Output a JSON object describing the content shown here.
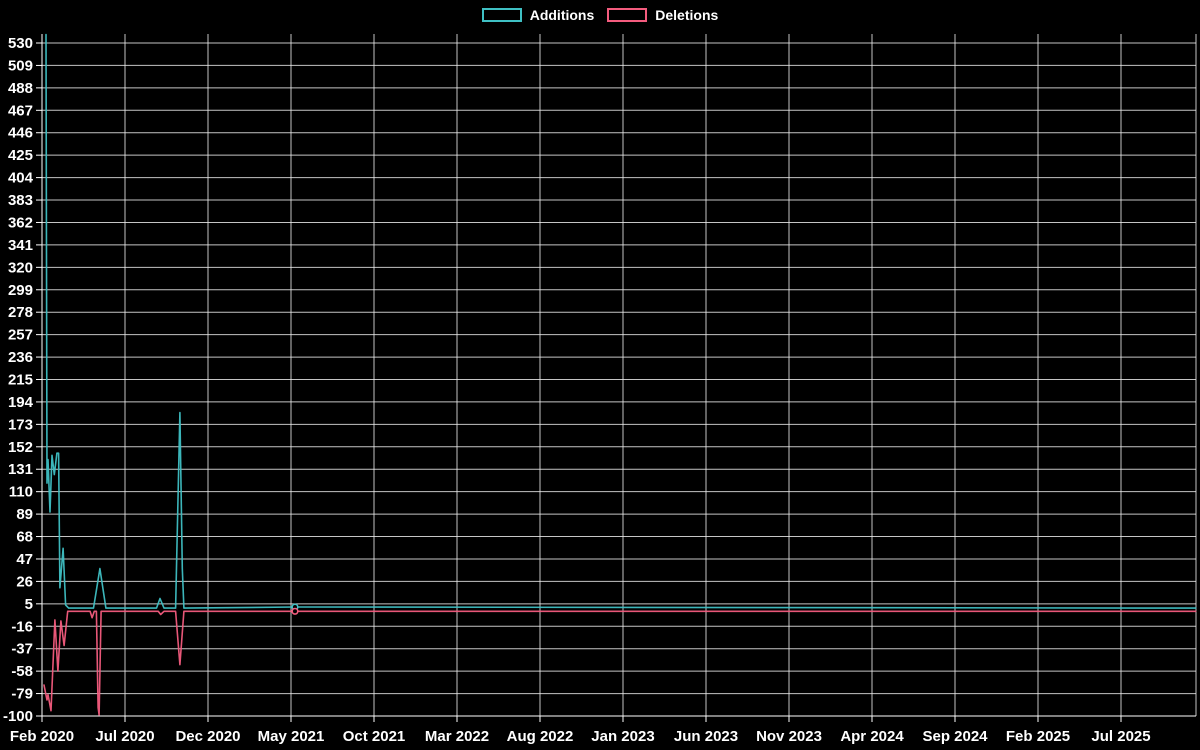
{
  "legend": {
    "items": [
      {
        "label": "Additions"
      },
      {
        "label": "Deletions"
      }
    ],
    "position": "top-center"
  },
  "chart_data": {
    "type": "line",
    "title": "",
    "xlabel": "",
    "ylabel": "",
    "background_color": "#000000",
    "grid": true,
    "grid_color": "#e8e8e8",
    "axis_color": "#ffffff",
    "tick_label_color": "#ffffff",
    "x_tick_labels": [
      "Feb 2020",
      "Jul 2020",
      "Dec 2020",
      "May 2021",
      "Oct 2021",
      "Mar 2022",
      "Aug 2022",
      "Jan 2023",
      "Jun 2023",
      "Nov 2023",
      "Apr 2024",
      "Sep 2024",
      "Feb 2025",
      "Jul 2025"
    ],
    "x_tick_interval_months": 5,
    "x_unit": "months_since_Feb_2020",
    "x_range": [
      0,
      69.5
    ],
    "y_ticks": [
      530,
      509,
      488,
      467,
      446,
      425,
      404,
      383,
      362,
      341,
      320,
      299,
      278,
      257,
      236,
      215,
      194,
      173,
      152,
      131,
      110,
      89,
      68,
      47,
      26,
      5,
      -16,
      -37,
      -58,
      -79,
      -100
    ],
    "ylim": [
      -100,
      538.5
    ],
    "series": [
      {
        "name": "Additions",
        "color": "#3fc0c4",
        "points": [
          [
            0.24,
            538
          ],
          [
            0.3,
            118
          ],
          [
            0.36,
            140
          ],
          [
            0.48,
            91
          ],
          [
            0.6,
            144
          ],
          [
            0.74,
            126
          ],
          [
            0.9,
            146
          ],
          [
            1.0,
            146
          ],
          [
            1.08,
            20
          ],
          [
            1.27,
            57
          ],
          [
            1.42,
            4
          ],
          [
            1.6,
            1
          ],
          [
            3.1,
            1
          ],
          [
            3.49,
            38
          ],
          [
            3.85,
            1
          ],
          [
            6.9,
            1
          ],
          [
            7.11,
            10
          ],
          [
            7.35,
            1
          ],
          [
            8.05,
            1
          ],
          [
            8.31,
            184
          ],
          [
            8.45,
            38
          ],
          [
            8.55,
            1
          ],
          [
            15.24,
            2
          ],
          [
            69.5,
            1
          ]
        ],
        "marker_points": [
          [
            15.24,
            2
          ]
        ]
      },
      {
        "name": "Deletions",
        "color": "#f45c7e",
        "points": [
          [
            0.12,
            -71
          ],
          [
            0.3,
            -85
          ],
          [
            0.36,
            -80
          ],
          [
            0.54,
            -95
          ],
          [
            0.78,
            -10
          ],
          [
            0.96,
            -58
          ],
          [
            1.14,
            -11
          ],
          [
            1.33,
            -34
          ],
          [
            1.55,
            -2
          ],
          [
            2.9,
            -2
          ],
          [
            3.02,
            -8
          ],
          [
            3.15,
            -2
          ],
          [
            3.28,
            -2
          ],
          [
            3.38,
            -92
          ],
          [
            3.44,
            -99
          ],
          [
            3.56,
            -2
          ],
          [
            7.0,
            -2
          ],
          [
            7.15,
            -5
          ],
          [
            7.35,
            -2
          ],
          [
            8.05,
            -2
          ],
          [
            8.31,
            -52
          ],
          [
            8.55,
            -2
          ],
          [
            15.24,
            -2
          ],
          [
            69.5,
            -2
          ]
        ],
        "marker_points": [
          [
            15.24,
            -2
          ]
        ]
      }
    ]
  }
}
